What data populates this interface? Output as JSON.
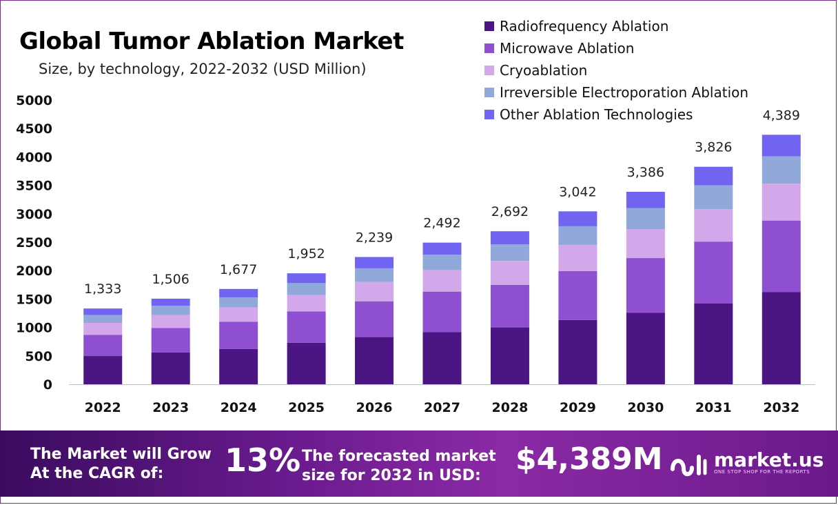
{
  "chart_data": {
    "type": "bar",
    "stacked": true,
    "title": "Global Tumor Ablation Market",
    "subtitle": "Size, by technology, 2022-2032 (USD Million)",
    "categories": [
      "2022",
      "2023",
      "2024",
      "2025",
      "2026",
      "2027",
      "2028",
      "2029",
      "2030",
      "2031",
      "2032"
    ],
    "totals": [
      1333,
      1506,
      1677,
      1952,
      2239,
      2492,
      2692,
      3042,
      3386,
      3826,
      4389
    ],
    "total_labels": [
      "1,333",
      "1,506",
      "1,677",
      "1,952",
      "2,239",
      "2,492",
      "2,692",
      "3,042",
      "3,386",
      "3,826",
      "4,389"
    ],
    "series": [
      {
        "name": "Radiofrequency Ablation",
        "color": "#4b1584",
        "values": [
          497,
          560,
          620,
          730,
          830,
          920,
          1000,
          1130,
          1260,
          1420,
          1620
        ]
      },
      {
        "name": "Microwave Ablation",
        "color": "#8e4fd0",
        "values": [
          373,
          430,
          480,
          550,
          630,
          710,
          750,
          860,
          960,
          1090,
          1260
        ]
      },
      {
        "name": "Cryoablation",
        "color": "#d3a8ea",
        "values": [
          210,
          230,
          250,
          290,
          340,
          380,
          420,
          460,
          510,
          570,
          650
        ]
      },
      {
        "name": "Irreversible Electroporation Ablation",
        "color": "#90a9da",
        "values": [
          140,
          160,
          180,
          210,
          240,
          270,
          290,
          330,
          370,
          420,
          480
        ]
      },
      {
        "name": "Other Ablation Technologies",
        "color": "#7064f0",
        "values": [
          113,
          126,
          147,
          172,
          199,
          212,
          232,
          262,
          286,
          326,
          379
        ]
      }
    ],
    "ylim": [
      0,
      5000
    ],
    "yticks": [
      "0",
      "500",
      "1000",
      "1500",
      "2000",
      "2500",
      "3000",
      "3500",
      "4000",
      "4500",
      "5000"
    ],
    "grid": false,
    "legend_position": "top-right"
  },
  "banner": {
    "cagr_text": "The Market will Grow\nAt the CAGR of:",
    "cagr_value": "13%",
    "forecast_text": "The forecasted market\nsize for 2032 in USD:",
    "forecast_value": "$4,389M",
    "logo_name": "market.us",
    "logo_tagline": "ONE STOP SHOP FOR THE REPORTS",
    "logo_icon": "market-us-logo-icon"
  },
  "colors": {
    "banner_start": "#3a0b5e",
    "banner_end": "#8b2aa5",
    "frame": "#7a2a8c"
  }
}
